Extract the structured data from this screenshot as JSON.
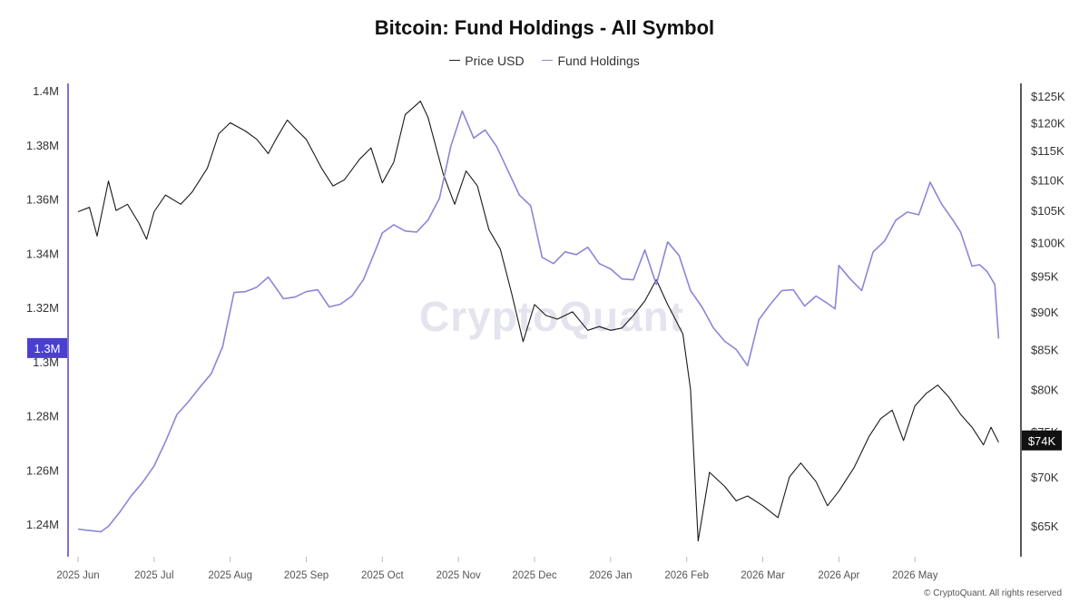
{
  "chart_data": {
    "type": "line",
    "title": "Bitcoin: Fund Holdings - All Symbol",
    "legend": {
      "placement": "top-center",
      "entries": [
        "Price USD",
        "Fund Holdings"
      ]
    },
    "x_tick_labels": [
      "2025 Jun",
      "2025 Jul",
      "2025 Aug",
      "2025 Sep",
      "2025 Oct",
      "2025 Nov",
      "2025 Dec",
      "2026 Jan",
      "2026 Feb",
      "2026 Mar",
      "2026 Apr",
      "2026 May"
    ],
    "x_range": [
      0,
      12.25
    ],
    "left_axis": {
      "series": "Fund Holdings",
      "range": [
        1.228,
        1.4
      ],
      "ticks": [
        1.24,
        1.26,
        1.28,
        1.3,
        1.32,
        1.34,
        1.36,
        1.38,
        1.4
      ],
      "tick_labels": [
        "1.24M",
        "1.26M",
        "1.28M",
        "1.3M",
        "1.32M",
        "1.34M",
        "1.36M",
        "1.38M",
        "1.4M"
      ],
      "current_label": "1.3M",
      "current_value": 1.305
    },
    "right_axis": {
      "series": "Price USD",
      "scale": "log",
      "range": [
        62000,
        126000
      ],
      "ticks": [
        65000,
        70000,
        75000,
        80000,
        85000,
        90000,
        95000,
        100000,
        105000,
        110000,
        115000,
        120000,
        125000
      ],
      "tick_labels": [
        "$65K",
        "$70K",
        "$75K",
        "$80K",
        "$85K",
        "$90K",
        "$95K",
        "$100K",
        "$105K",
        "$110K",
        "$115K",
        "$120K",
        "$125K"
      ],
      "current_label": "$74K",
      "current_value": 74000
    },
    "grid": false,
    "series": [
      {
        "name": "Price USD",
        "color": "#1a1a1a",
        "axis": "right",
        "x": [
          0,
          0.15,
          0.25,
          0.4,
          0.5,
          0.65,
          0.8,
          0.9,
          1.0,
          1.15,
          1.35,
          1.5,
          1.7,
          1.85,
          2.0,
          2.2,
          2.35,
          2.5,
          2.6,
          2.75,
          2.85,
          3.0,
          3.2,
          3.35,
          3.5,
          3.7,
          3.85,
          4.0,
          4.15,
          4.3,
          4.5,
          4.6,
          4.8,
          4.95,
          5.1,
          5.25,
          5.4,
          5.55,
          5.7,
          5.85,
          6.0,
          6.15,
          6.3,
          6.5,
          6.7,
          6.85,
          7.0,
          7.15,
          7.3,
          7.45,
          7.6,
          7.75,
          7.85,
          7.95,
          8.05,
          8.15,
          8.3,
          8.5,
          8.65,
          8.8,
          9.0,
          9.2,
          9.35,
          9.5,
          9.7,
          9.85,
          10.0,
          10.2,
          10.4,
          10.55,
          10.7,
          10.85,
          11.0,
          11.15,
          11.3,
          11.45,
          11.6,
          11.75,
          11.9,
          12.0,
          12.1
        ],
        "y": [
          104800,
          105500,
          101000,
          109800,
          105000,
          106000,
          103000,
          100500,
          104800,
          107500,
          106000,
          108000,
          112000,
          118000,
          120000,
          118500,
          117000,
          114500,
          117000,
          120500,
          119000,
          117000,
          112000,
          109000,
          110000,
          113500,
          115500,
          109500,
          113000,
          121500,
          124000,
          121000,
          111000,
          106000,
          111500,
          109000,
          102000,
          99000,
          92500,
          86000,
          91000,
          89500,
          89000,
          90000,
          87500,
          88000,
          87500,
          87800,
          89500,
          91500,
          94500,
          91000,
          89000,
          87000,
          80000,
          63500,
          70500,
          69000,
          67500,
          68000,
          67000,
          65800,
          70000,
          71500,
          69500,
          67000,
          68500,
          71000,
          74500,
          76500,
          77500,
          74000,
          78000,
          79500,
          80500,
          79000,
          77000,
          75500,
          73500,
          75500,
          73800
        ]
      },
      {
        "name": "Fund Holdings",
        "color": "#8a86d9",
        "axis": "left",
        "x": [
          0,
          0.1,
          0.2,
          0.3,
          0.4,
          0.55,
          0.7,
          0.85,
          1.0,
          1.15,
          1.3,
          1.45,
          1.6,
          1.75,
          1.9,
          2.05,
          2.2,
          2.35,
          2.5,
          2.7,
          2.85,
          3.0,
          3.15,
          3.3,
          3.45,
          3.6,
          3.75,
          3.9,
          4.0,
          4.15,
          4.3,
          4.45,
          4.6,
          4.75,
          4.9,
          5.05,
          5.2,
          5.35,
          5.5,
          5.65,
          5.8,
          5.95,
          6.1,
          6.25,
          6.4,
          6.55,
          6.7,
          6.85,
          7.0,
          7.15,
          7.3,
          7.45,
          7.6,
          7.75,
          7.9,
          8.05,
          8.2,
          8.35,
          8.5,
          8.65,
          8.8,
          8.95,
          9.1,
          9.25,
          9.4,
          9.55,
          9.7,
          9.85,
          9.95,
          10.0,
          10.15,
          10.3,
          10.45,
          10.6,
          10.75,
          10.9,
          11.05,
          11.2,
          11.35,
          11.5,
          11.6,
          11.75,
          11.85,
          11.95,
          12.05,
          12.1
        ],
        "y": [
          1.2382,
          1.2378,
          1.2375,
          1.2372,
          1.2392,
          1.2445,
          1.2505,
          1.2555,
          1.2615,
          1.2705,
          1.2805,
          1.2852,
          1.2905,
          1.2955,
          1.3055,
          1.3255,
          1.3258,
          1.3275,
          1.3312,
          1.3232,
          1.3238,
          1.3258,
          1.3265,
          1.3202,
          1.3212,
          1.3242,
          1.3302,
          1.3405,
          1.3475,
          1.3505,
          1.3482,
          1.3478,
          1.3522,
          1.3602,
          1.3795,
          1.3925,
          1.3825,
          1.3855,
          1.3795,
          1.3705,
          1.3615,
          1.3575,
          1.3385,
          1.3362,
          1.3405,
          1.3395,
          1.3422,
          1.3362,
          1.3342,
          1.3305,
          1.3302,
          1.3412,
          1.3285,
          1.3442,
          1.3392,
          1.3262,
          1.3202,
          1.3125,
          1.3075,
          1.3045,
          1.2985,
          1.3155,
          1.3212,
          1.3262,
          1.3265,
          1.3205,
          1.3242,
          1.3215,
          1.3195,
          1.3355,
          1.3305,
          1.3262,
          1.3405,
          1.3445,
          1.3522,
          1.3552,
          1.3542,
          1.3662,
          1.3582,
          1.3522,
          1.3478,
          1.3352,
          1.3358,
          1.3332,
          1.3285,
          1.3085
        ]
      }
    ]
  },
  "footer": {
    "copyright": "© CryptoQuant. All rights reserved",
    "watermark": "CryptoQuant"
  }
}
